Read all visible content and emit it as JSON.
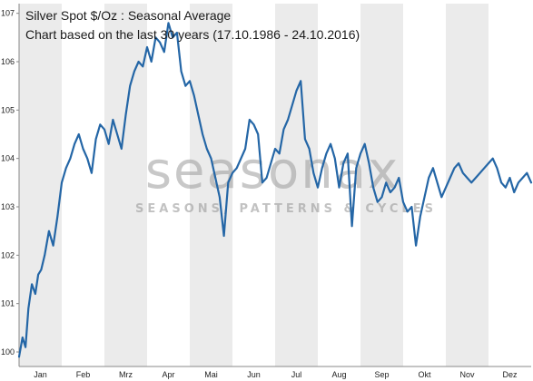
{
  "chart_data": {
    "type": "line",
    "title": "Silver Spot  $/Oz : Seasonal Average",
    "subtitle": "Chart based on the last 30 years (17.10.1986 - 24.10.2016)",
    "watermark": "seasonax",
    "watermark_tagline": "SEASONS, PATTERNS & CYCLES",
    "categories": [
      "Jan",
      "Feb",
      "Mrz",
      "Apr",
      "Mai",
      "Jun",
      "Jul",
      "Aug",
      "Sep",
      "Okt",
      "Nov",
      "Dez"
    ],
    "yticks": [
      100,
      101,
      102,
      103,
      104,
      105,
      106,
      107
    ],
    "ylim": [
      99.7,
      107.2
    ],
    "xlim": [
      0,
      12
    ],
    "line_color": "#2466a6",
    "band_color": "#ebebeb",
    "series": [
      {
        "x": [
          0.0,
          0.08,
          0.15,
          0.22,
          0.3,
          0.38,
          0.45,
          0.52,
          0.6,
          0.7,
          0.8,
          0.9,
          1.0,
          1.1,
          1.2,
          1.3,
          1.4,
          1.5,
          1.6,
          1.7,
          1.8,
          1.9,
          2.0,
          2.1,
          2.2,
          2.3,
          2.4,
          2.5,
          2.6,
          2.7,
          2.8,
          2.9,
          3.0,
          3.1,
          3.2,
          3.3,
          3.4,
          3.5,
          3.6,
          3.7,
          3.8,
          3.9,
          4.0,
          4.1,
          4.2,
          4.3,
          4.4,
          4.5,
          4.6,
          4.7,
          4.8,
          4.9,
          5.0,
          5.1,
          5.2,
          5.3,
          5.4,
          5.5,
          5.6,
          5.7,
          5.8,
          5.9,
          6.0,
          6.1,
          6.2,
          6.3,
          6.4,
          6.5,
          6.6,
          6.7,
          6.8,
          6.9,
          7.0,
          7.1,
          7.2,
          7.3,
          7.4,
          7.5,
          7.6,
          7.7,
          7.8,
          7.9,
          8.0,
          8.1,
          8.2,
          8.3,
          8.4,
          8.5,
          8.6,
          8.7,
          8.8,
          8.9,
          9.0,
          9.1,
          9.2,
          9.3,
          9.4,
          9.5,
          9.6,
          9.7,
          9.8,
          9.9,
          10.0,
          10.1,
          10.2,
          10.3,
          10.4,
          10.5,
          10.6,
          10.7,
          10.8,
          10.9,
          11.0,
          11.1,
          11.2,
          11.3,
          11.4,
          11.5,
          11.6,
          11.7,
          11.8,
          11.9,
          12.0
        ],
        "values": [
          99.9,
          100.3,
          100.1,
          100.9,
          101.4,
          101.2,
          101.6,
          101.7,
          102.0,
          102.5,
          102.2,
          102.8,
          103.5,
          103.8,
          104.0,
          104.3,
          104.5,
          104.2,
          104.0,
          103.7,
          104.4,
          104.7,
          104.6,
          104.3,
          104.8,
          104.5,
          104.2,
          104.9,
          105.5,
          105.8,
          106.0,
          105.9,
          106.3,
          106.0,
          106.5,
          106.4,
          106.2,
          106.8,
          106.5,
          106.6,
          105.8,
          105.5,
          105.6,
          105.3,
          104.9,
          104.5,
          104.2,
          104.0,
          103.6,
          103.2,
          102.4,
          103.5,
          103.7,
          103.8,
          104.0,
          104.2,
          104.8,
          104.7,
          104.5,
          103.5,
          103.6,
          103.9,
          104.2,
          104.1,
          104.6,
          104.8,
          105.1,
          105.4,
          105.6,
          104.4,
          104.2,
          103.7,
          103.4,
          103.8,
          104.1,
          104.3,
          104.0,
          103.4,
          103.9,
          104.1,
          102.6,
          103.8,
          104.1,
          104.3,
          103.9,
          103.4,
          103.1,
          103.2,
          103.5,
          103.3,
          103.4,
          103.6,
          103.1,
          102.9,
          103.0,
          102.2,
          102.8,
          103.2,
          103.6,
          103.8,
          103.5,
          103.2,
          103.4,
          103.6,
          103.8,
          103.9,
          103.7,
          103.6,
          103.5,
          103.6,
          103.7,
          103.8,
          103.9,
          104.0,
          103.8,
          103.5,
          103.4,
          103.6,
          103.3,
          103.5,
          103.6,
          103.7,
          103.5
        ]
      }
    ]
  }
}
